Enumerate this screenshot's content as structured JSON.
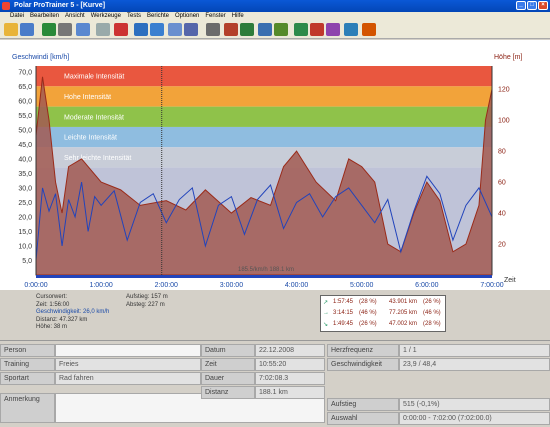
{
  "window": {
    "title": "Polar ProTrainer 5 - [Kurve]",
    "controls": [
      "_",
      "□",
      "×"
    ]
  },
  "menu": [
    "Datei",
    "Bearbeiten",
    "Ansicht",
    "Werkzeuge",
    "Tests",
    "Berichte",
    "Optionen",
    "Fenster",
    "Hilfe"
  ],
  "toolbar": {
    "icons": [
      "open-icon",
      "save-icon",
      "exercise-icon",
      "gear-icon",
      "calendar-icon",
      "notes-icon",
      "delete-icon",
      "chart-line-icon",
      "chart-line-2-icon",
      "chart-area-icon",
      "chart-columns-icon",
      "zoom-icon",
      "compare-icon",
      "flag-icon",
      "laps-icon",
      "stats-icon",
      "report-1-icon",
      "report-2-icon",
      "report-3-icon",
      "report-4-icon",
      "report-5-icon"
    ]
  },
  "chart": {
    "left_axis_label": "Geschwindi",
    "left_axis_unit": "[km/h]",
    "right_axis_label": "Höhe",
    "right_axis_unit": "[m]",
    "x_axis_label": "Zeit",
    "mid_label": "185.5/km/h 188.1 km",
    "zones": [
      {
        "label": "Maximale Intensität",
        "color": "#e9573f"
      },
      {
        "label": "Hohe Intensität",
        "color": "#f2a33a"
      },
      {
        "label": "Moderate Intensität",
        "color": "#8fc24a"
      },
      {
        "label": "Leichte Intensität",
        "color": "#8fbde0"
      },
      {
        "label": "Sehr leichte Intensität",
        "color": "#c8cdd8"
      }
    ]
  },
  "chart_data": {
    "type": "line",
    "x_ticks": [
      "0:00:00",
      "1:00:00",
      "2:00:00",
      "3:00:00",
      "4:00:00",
      "5:00:00",
      "6:00:00",
      "7:00:00"
    ],
    "y_left_ticks": [
      "70,0",
      "65,0",
      "60,0",
      "55,0",
      "50,0",
      "45,0",
      "40,0",
      "35,0",
      "30,0",
      "25,0",
      "20,0",
      "15,0",
      "10,0",
      "5,0"
    ],
    "y_right_ticks": [
      "120",
      "100",
      "80",
      "60",
      "40",
      "20"
    ],
    "ylim_left": [
      0,
      72
    ],
    "ylim_right": [
      0,
      135
    ],
    "xlim": [
      0,
      7.0
    ],
    "series": [
      {
        "name": "Geschwindigkeit",
        "color": "#2244bb",
        "x": [
          0,
          0.1,
          0.2,
          0.3,
          0.4,
          0.5,
          0.6,
          0.7,
          0.8,
          0.9,
          1.0,
          1.2,
          1.4,
          1.6,
          1.8,
          2.0,
          2.2,
          2.4,
          2.6,
          2.8,
          3.0,
          3.2,
          3.4,
          3.6,
          3.8,
          4.0,
          4.2,
          4.4,
          4.6,
          4.8,
          5.0,
          5.2,
          5.4,
          5.6,
          5.8,
          6.0,
          6.2,
          6.4,
          6.6,
          6.8,
          7.0
        ],
        "values": [
          5,
          30,
          22,
          28,
          10,
          26,
          20,
          32,
          15,
          27,
          24,
          29,
          12,
          25,
          28,
          18,
          26,
          30,
          10,
          24,
          27,
          14,
          26,
          31,
          16,
          25,
          28,
          20,
          27,
          30,
          24,
          18,
          26,
          8,
          22,
          34,
          28,
          12,
          24,
          30,
          20
        ]
      },
      {
        "name": "Höhe",
        "color": "#9a2b1a",
        "x": [
          0,
          0.1,
          0.2,
          0.3,
          0.4,
          0.5,
          0.7,
          1.0,
          1.3,
          1.6,
          2.0,
          2.3,
          2.6,
          3.0,
          3.3,
          3.6,
          3.8,
          4.0,
          4.3,
          4.6,
          4.8,
          5.0,
          5.2,
          5.4,
          5.6,
          5.8,
          6.0,
          6.2,
          6.4,
          6.6,
          6.8,
          6.9,
          7.0
        ],
        "values": [
          90,
          128,
          100,
          60,
          40,
          70,
          75,
          60,
          55,
          45,
          48,
          42,
          55,
          40,
          50,
          45,
          70,
          80,
          60,
          48,
          75,
          70,
          60,
          20,
          15,
          40,
          60,
          48,
          15,
          20,
          45,
          100,
          120
        ]
      }
    ]
  },
  "cursor": {
    "cursorwert": "Cursorwert:",
    "zeit": "Zeit: 1:56:00",
    "geschwindigkeit": "Geschwindigkeit: 26,0 km/h",
    "distanz": "Distanz: 47.327 km",
    "hoehe": "Höhe: 38 m",
    "aufstieg": "Aufstieg: 157 m",
    "abstieg": "Absteg: 227 m"
  },
  "legend_rows": [
    {
      "arrow": "↗",
      "time": "1:57:45",
      "pct1": "(28 %)",
      "dist": "43.901 km",
      "pct2": "(26 %)"
    },
    {
      "arrow": "→",
      "time": "3:14:15",
      "pct1": "(46 %)",
      "dist": "77.205 km",
      "pct2": "(46 %)"
    },
    {
      "arrow": "↘",
      "time": "1:49:45",
      "pct1": "(26 %)",
      "dist": "47.002 km",
      "pct2": "(28 %)"
    }
  ],
  "details": {
    "person_label": "Person",
    "person_value": "",
    "training_label": "Training",
    "training_value": "Freies",
    "sportart_label": "Sportart",
    "sportart_value": "Rad fahren",
    "anmerkung_label": "Anmerkung",
    "datum_label": "Datum",
    "datum_value": "22.12.2008",
    "zeit_label": "Zeit",
    "zeit_value": "10:55:20",
    "dauer_label": "Dauer",
    "dauer_value": "7:02:08.3",
    "distanz_label": "Distanz",
    "distanz_value": "188.1 km",
    "hf_label": "Herzfrequenz",
    "hf_value": "1 / 1",
    "geschw_label": "Geschwindigkeit",
    "geschw_value": "23,9 / 48,4",
    "aufstieg_label": "Aufstieg",
    "aufstieg_value": "515 (-0,1%)",
    "auswahl_label": "Auswahl",
    "auswahl_value": "0:00:00 - 7:02:00 (7:02:00.0)"
  }
}
